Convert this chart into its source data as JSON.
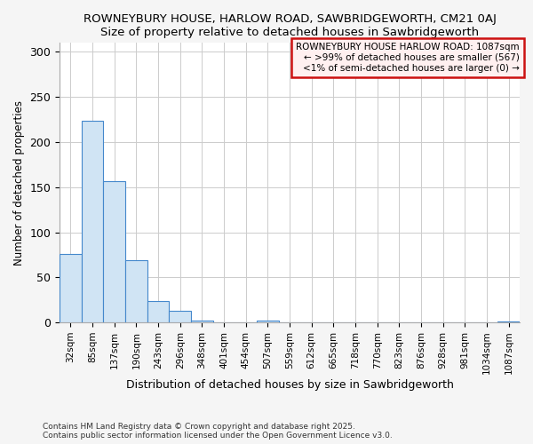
{
  "title1": "ROWNEYBURY HOUSE, HARLOW ROAD, SAWBRIDGEWORTH, CM21 0AJ",
  "title2": "Size of property relative to detached houses in Sawbridgeworth",
  "xlabel": "Distribution of detached houses by size in Sawbridgeworth",
  "ylabel": "Number of detached properties",
  "categories": [
    "32sqm",
    "85sqm",
    "137sqm",
    "190sqm",
    "243sqm",
    "296sqm",
    "348sqm",
    "401sqm",
    "454sqm",
    "507sqm",
    "559sqm",
    "612sqm",
    "665sqm",
    "718sqm",
    "770sqm",
    "823sqm",
    "876sqm",
    "928sqm",
    "981sqm",
    "1034sqm",
    "1087sqm"
  ],
  "values": [
    76,
    224,
    157,
    69,
    24,
    13,
    2,
    0,
    0,
    2,
    0,
    0,
    0,
    0,
    0,
    0,
    0,
    0,
    0,
    0,
    1
  ],
  "bar_color": "#d0e4f4",
  "bar_edge_color": "#4488cc",
  "legend_text_line1": "ROWNEYBURY HOUSE HARLOW ROAD: 1087sqm",
  "legend_text_line2": "← >99% of detached houses are smaller (567)",
  "legend_text_line3": "<1% of semi-detached houses are larger (0) →",
  "legend_box_facecolor": "#fff0f0",
  "legend_box_edge": "#cc1111",
  "ylim": [
    0,
    310
  ],
  "yticks": [
    0,
    50,
    100,
    150,
    200,
    250,
    300
  ],
  "footnote1": "Contains HM Land Registry data © Crown copyright and database right 2025.",
  "footnote2": "Contains public sector information licensed under the Open Government Licence v3.0.",
  "bg_color": "#f5f5f5",
  "plot_bg_color": "#ffffff",
  "grid_color": "#cccccc"
}
